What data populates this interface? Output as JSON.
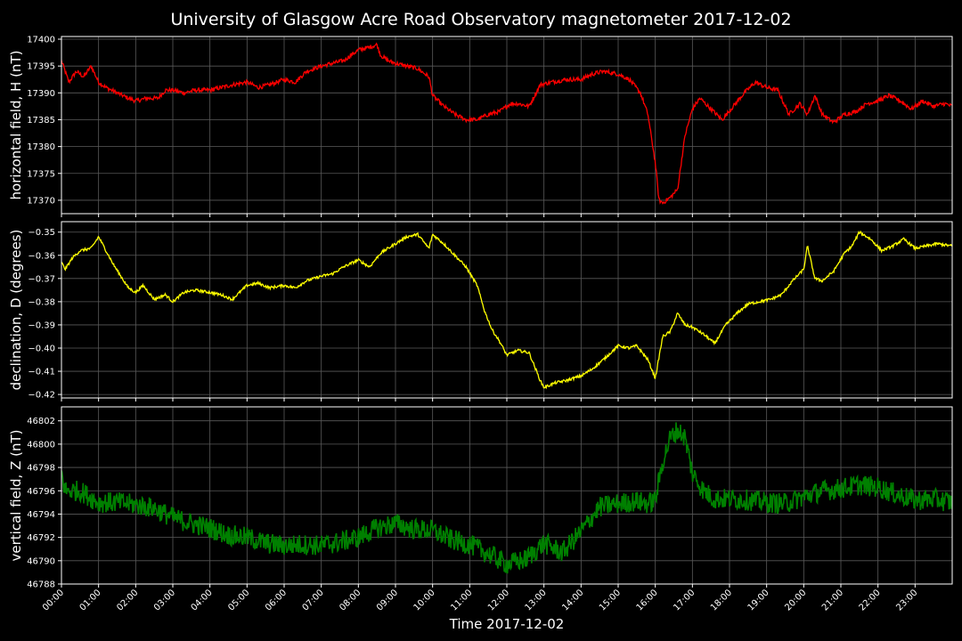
{
  "chart_data": {
    "type": "line",
    "title": "University of Glasgow Acre Road Observatory magnetometer 2017-12-02",
    "xlabel": "Time 2017-12-02",
    "x_tick_labels": [
      "00:00",
      "01:00",
      "02:00",
      "03:00",
      "04:00",
      "05:00",
      "06:00",
      "07:00",
      "08:00",
      "09:00",
      "10:00",
      "11:00",
      "12:00",
      "13:00",
      "14:00",
      "15:00",
      "16:00",
      "17:00",
      "18:00",
      "19:00",
      "20:00",
      "21:00",
      "22:00",
      "23:00"
    ],
    "xlim_hours": [
      0,
      24
    ],
    "grid": true,
    "background": "#000000",
    "panels": [
      {
        "ylabel": "horizontal field, H (nT)",
        "color": "#ff0000",
        "ylim": [
          17367.5,
          17400.5
        ],
        "yticks": [
          17370,
          17375,
          17380,
          17385,
          17390,
          17395,
          17400
        ],
        "ytick_labels": [
          "17370",
          "17375",
          "17380",
          "17385",
          "17390",
          "17395",
          "17400"
        ],
        "noise": 0.4,
        "x": [
          0,
          0.2,
          0.4,
          0.6,
          0.8,
          1.0,
          1.2,
          1.5,
          1.8,
          2.0,
          2.3,
          2.6,
          2.8,
          3.0,
          3.3,
          3.6,
          4.0,
          4.3,
          4.6,
          5.0,
          5.3,
          5.6,
          6.0,
          6.3,
          6.6,
          7.0,
          7.3,
          7.6,
          8.0,
          8.3,
          8.5,
          8.6,
          8.8,
          9.0,
          9.3,
          9.6,
          9.9,
          10.0,
          10.3,
          10.6,
          10.9,
          11.2,
          11.5,
          11.8,
          12.1,
          12.3,
          12.6,
          12.9,
          13.2,
          13.6,
          14.0,
          14.3,
          14.6,
          15.0,
          15.3,
          15.6,
          15.8,
          16.0,
          16.1,
          16.2,
          16.4,
          16.6,
          16.8,
          17.0,
          17.2,
          17.5,
          17.8,
          18.1,
          18.4,
          18.7,
          19.0,
          19.3,
          19.6,
          19.9,
          20.1,
          20.3,
          20.5,
          20.8,
          21.1,
          21.4,
          21.7,
          22.0,
          22.3,
          22.6,
          22.9,
          23.2,
          23.5,
          23.8,
          24.0
        ],
        "y": [
          17396,
          17392,
          17394,
          17393,
          17395,
          17392,
          17391,
          17390,
          17389,
          17388.5,
          17389,
          17389,
          17390.5,
          17390.5,
          17390,
          17390.5,
          17390.5,
          17391,
          17391.5,
          17392,
          17391,
          17391.5,
          17392.5,
          17392,
          17394,
          17395,
          17395.5,
          17396,
          17398,
          17398.5,
          17399,
          17397,
          17396,
          17395.5,
          17395,
          17394.5,
          17393,
          17389.5,
          17387.5,
          17386,
          17385,
          17385,
          17386,
          17386.5,
          17388,
          17388,
          17387.5,
          17391.5,
          17392,
          17392.5,
          17392.5,
          17393.5,
          17394,
          17393.5,
          17392.5,
          17390,
          17386,
          17377,
          17370,
          17369.5,
          17370.5,
          17372,
          17382,
          17387,
          17389,
          17387,
          17385,
          17387.5,
          17390,
          17392,
          17391,
          17390.5,
          17386,
          17388,
          17386,
          17389.5,
          17386,
          17384.5,
          17386,
          17386.5,
          17388,
          17388.5,
          17389.5,
          17388.5,
          17387,
          17388.5,
          17387.5,
          17388,
          17387.5
        ]
      },
      {
        "ylabel": "declination, D (degrees)",
        "color": "#ffff00",
        "ylim": [
          -0.4215,
          -0.3455
        ],
        "yticks": [
          -0.42,
          -0.41,
          -0.4,
          -0.39,
          -0.38,
          -0.37,
          -0.36,
          -0.35
        ],
        "ytick_labels": [
          "−0.42",
          "−0.41",
          "−0.40",
          "−0.39",
          "−0.38",
          "−0.37",
          "−0.36",
          "−0.35"
        ],
        "noise": 0.0006,
        "x": [
          0,
          0.1,
          0.3,
          0.5,
          0.8,
          1.0,
          1.2,
          1.4,
          1.6,
          1.8,
          2.0,
          2.2,
          2.5,
          2.8,
          3.0,
          3.3,
          3.6,
          4.0,
          4.3,
          4.6,
          5.0,
          5.3,
          5.6,
          6.0,
          6.3,
          6.6,
          7.0,
          7.3,
          7.6,
          8.0,
          8.3,
          8.6,
          9.0,
          9.3,
          9.6,
          9.9,
          10.0,
          10.3,
          10.6,
          10.9,
          11.2,
          11.4,
          11.6,
          11.8,
          12.0,
          12.3,
          12.6,
          12.9,
          13.0,
          13.3,
          13.6,
          14.0,
          14.3,
          14.6,
          15.0,
          15.3,
          15.5,
          15.8,
          16.0,
          16.2,
          16.4,
          16.6,
          16.8,
          17.0,
          17.3,
          17.6,
          17.9,
          18.2,
          18.5,
          18.8,
          19.1,
          19.4,
          19.7,
          20.0,
          20.1,
          20.3,
          20.5,
          20.8,
          21.1,
          21.3,
          21.5,
          21.8,
          22.1,
          22.4,
          22.7,
          23.0,
          23.3,
          23.6,
          24.0
        ],
        "y": [
          -0.363,
          -0.366,
          -0.361,
          -0.358,
          -0.357,
          -0.352,
          -0.358,
          -0.364,
          -0.369,
          -0.374,
          -0.376,
          -0.373,
          -0.379,
          -0.377,
          -0.38,
          -0.376,
          -0.375,
          -0.376,
          -0.377,
          -0.379,
          -0.373,
          -0.372,
          -0.374,
          -0.373,
          -0.374,
          -0.371,
          -0.369,
          -0.368,
          -0.365,
          -0.362,
          -0.365,
          -0.359,
          -0.355,
          -0.352,
          -0.351,
          -0.357,
          -0.351,
          -0.355,
          -0.36,
          -0.365,
          -0.373,
          -0.384,
          -0.392,
          -0.397,
          -0.403,
          -0.401,
          -0.402,
          -0.414,
          -0.417,
          -0.415,
          -0.414,
          -0.412,
          -0.409,
          -0.405,
          -0.399,
          -0.4,
          -0.399,
          -0.405,
          -0.413,
          -0.395,
          -0.393,
          -0.385,
          -0.39,
          -0.391,
          -0.394,
          -0.398,
          -0.39,
          -0.385,
          -0.381,
          -0.38,
          -0.379,
          -0.377,
          -0.371,
          -0.366,
          -0.356,
          -0.37,
          -0.371,
          -0.367,
          -0.359,
          -0.356,
          -0.35,
          -0.353,
          -0.358,
          -0.356,
          -0.353,
          -0.357,
          -0.356,
          -0.355,
          -0.356
        ]
      },
      {
        "ylabel": "vertical field, Z (nT)",
        "color": "#008000",
        "ylim": [
          46788,
          46803.2
        ],
        "yticks": [
          46788,
          46790,
          46792,
          46794,
          46796,
          46798,
          46800,
          46802
        ],
        "ytick_labels": [
          "46788",
          "46790",
          "46792",
          "46794",
          "46796",
          "46798",
          "46800",
          "46802"
        ],
        "noise": 0.9,
        "x": [
          0,
          0.1,
          0.5,
          1.0,
          1.5,
          2.0,
          2.5,
          3.0,
          3.5,
          4.0,
          4.5,
          5.0,
          5.5,
          6.0,
          6.5,
          7.0,
          7.5,
          8.0,
          8.5,
          9.0,
          9.5,
          10.0,
          10.5,
          11.0,
          11.5,
          12.0,
          12.5,
          13.0,
          13.5,
          14.0,
          14.5,
          15.0,
          15.5,
          15.8,
          16.0,
          16.2,
          16.4,
          16.6,
          16.8,
          17.0,
          17.3,
          17.6,
          18.0,
          18.5,
          19.0,
          19.5,
          20.0,
          20.5,
          21.0,
          21.5,
          22.0,
          22.5,
          23.0,
          23.5,
          24.0
        ],
        "y": [
          46797.5,
          46796,
          46796,
          46795,
          46795,
          46794.8,
          46794.5,
          46793.7,
          46793.2,
          46792.8,
          46792.2,
          46792,
          46791.5,
          46791.3,
          46791.4,
          46791.3,
          46791.6,
          46792,
          46792.8,
          46793.2,
          46792.7,
          46792.6,
          46791.8,
          46791.4,
          46790.6,
          46789.7,
          46790.1,
          46791.5,
          46790.7,
          46792.5,
          46794.6,
          46794.9,
          46795.1,
          46794.9,
          46795.2,
          46798.5,
          46800.5,
          46801.2,
          46800.6,
          46797.5,
          46796,
          46795.3,
          46795.3,
          46795.2,
          46795,
          46794.9,
          46795.5,
          46796,
          46796.2,
          46796.5,
          46796.3,
          46795.7,
          46795.2,
          46795.3,
          46795
        ]
      }
    ]
  }
}
